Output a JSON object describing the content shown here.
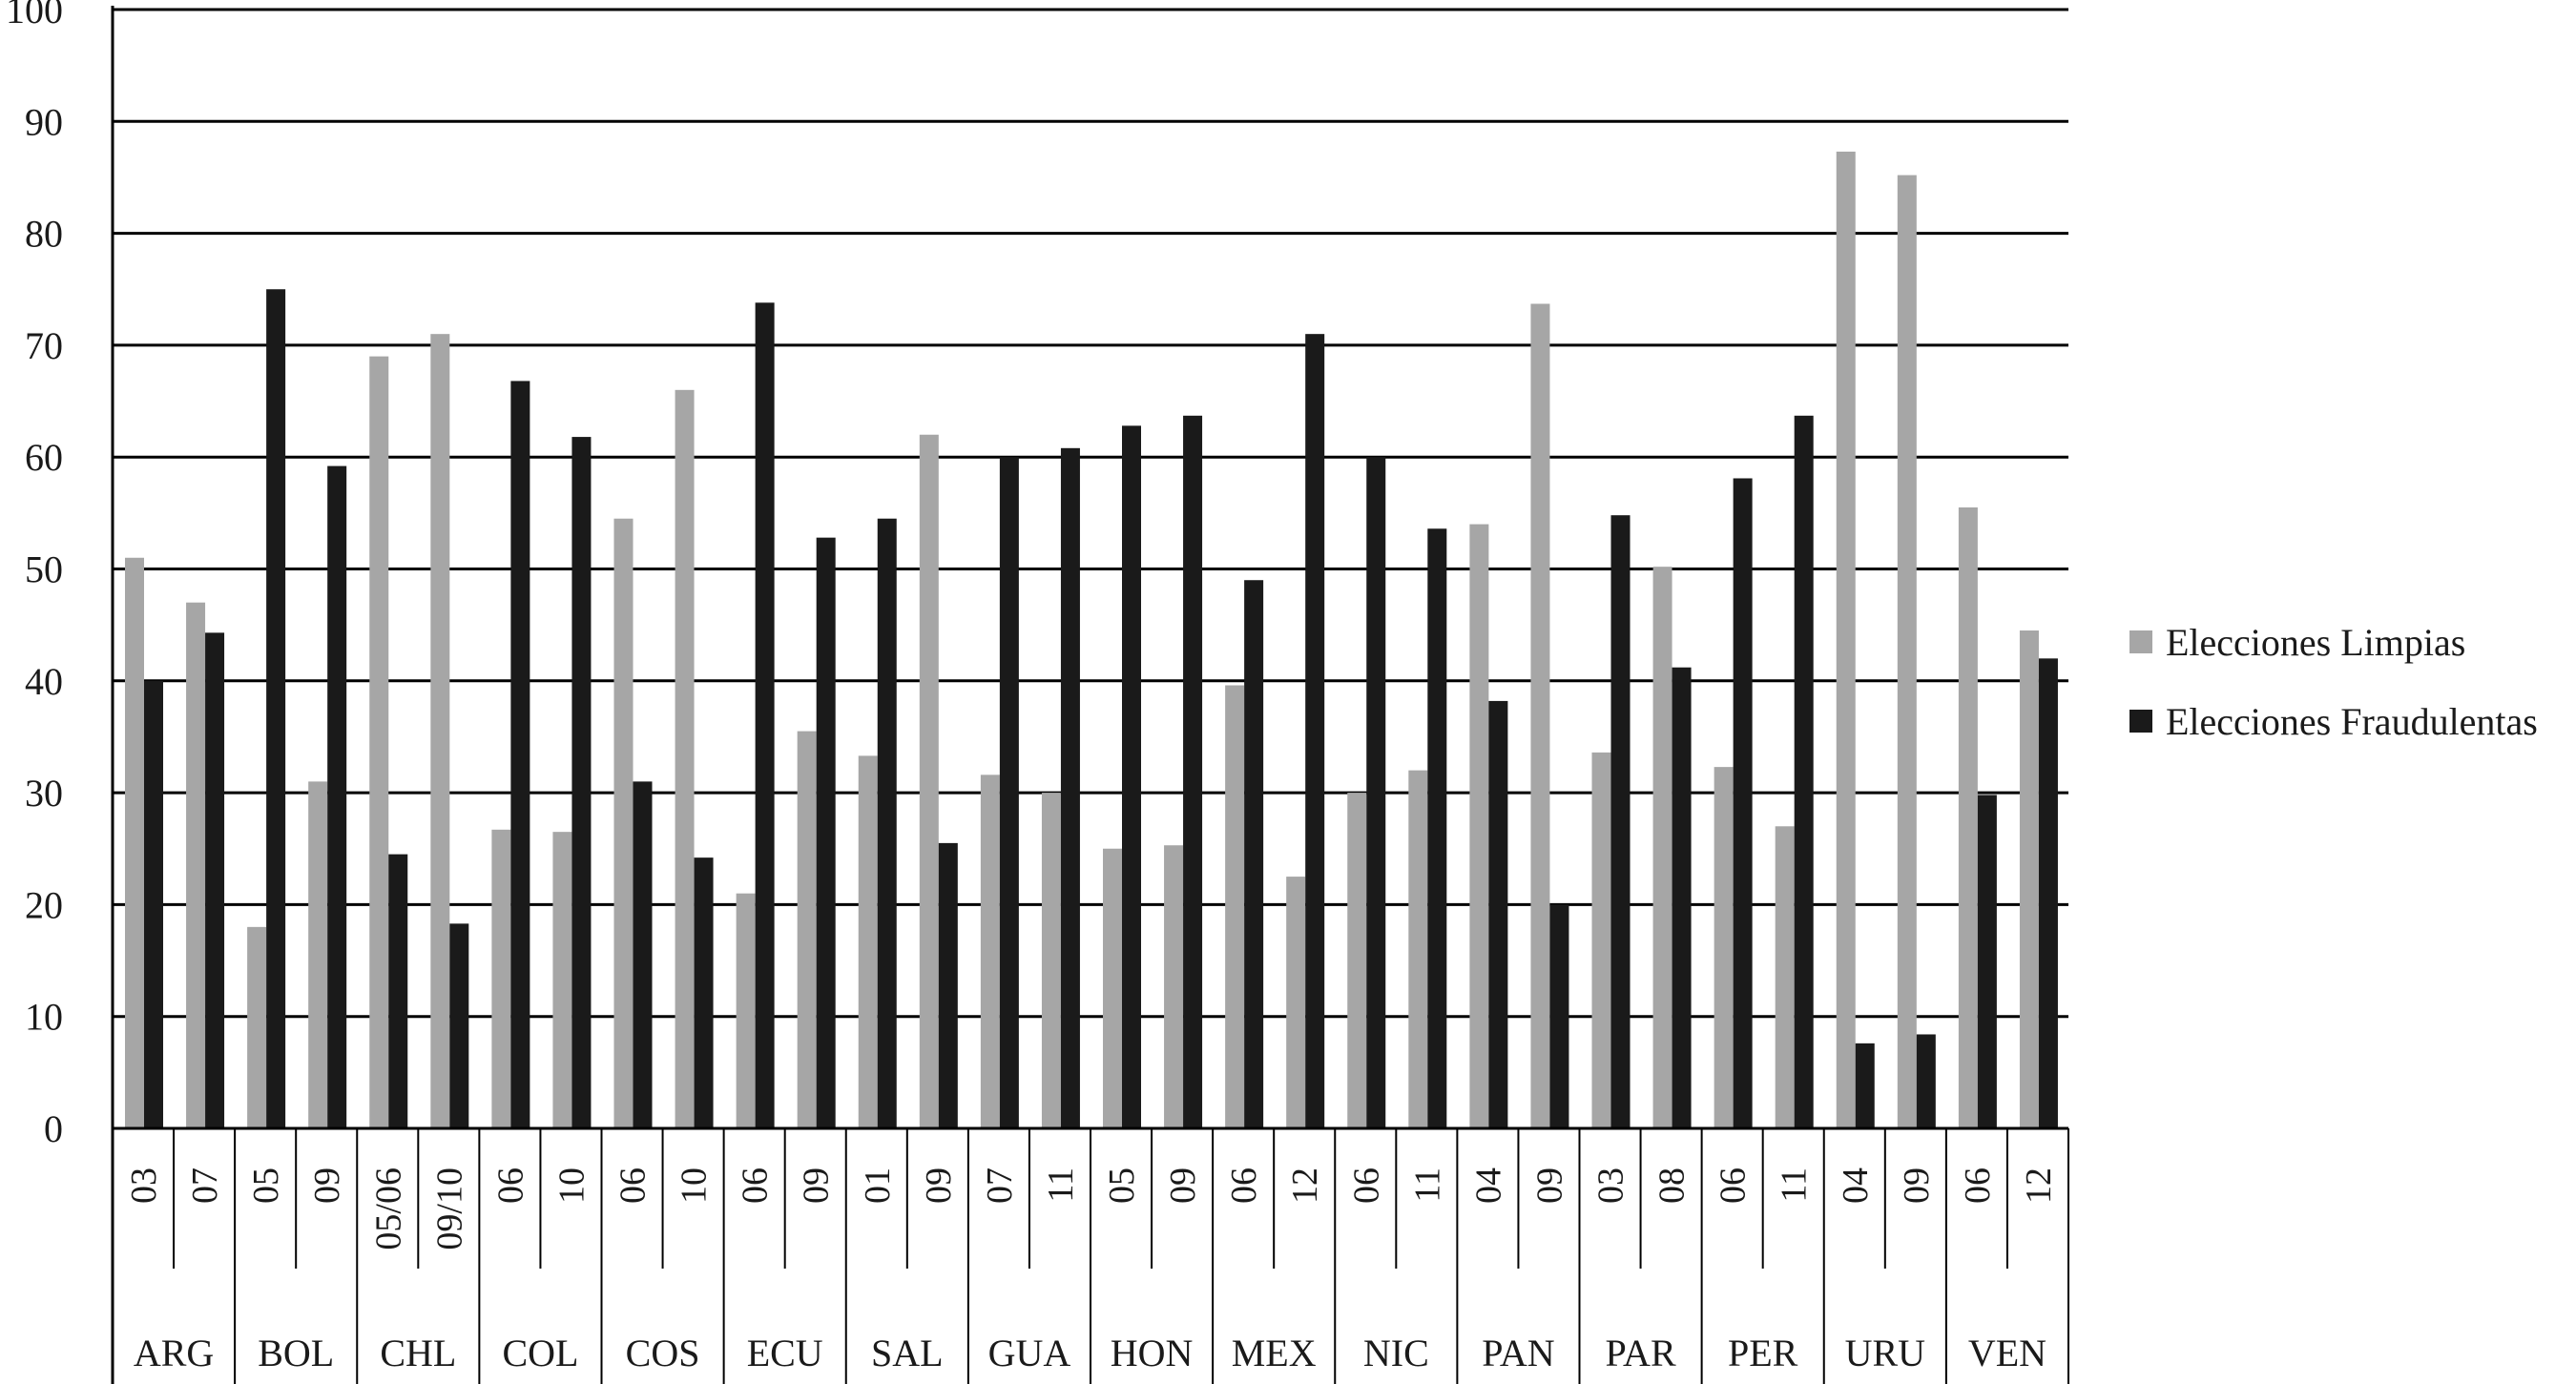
{
  "chart_data": {
    "type": "bar",
    "ylim": [
      0,
      100
    ],
    "yticks": [
      0,
      10,
      20,
      30,
      40,
      50,
      60,
      70,
      80,
      90,
      100
    ],
    "grid": true,
    "legend_position": "right",
    "groups": [
      {
        "country": "ARG",
        "years": [
          "03",
          "07"
        ]
      },
      {
        "country": "BOL",
        "years": [
          "05",
          "09"
        ]
      },
      {
        "country": "CHL",
        "years": [
          "05/06",
          "09/10"
        ]
      },
      {
        "country": "COL",
        "years": [
          "06",
          "10"
        ]
      },
      {
        "country": "COS",
        "years": [
          "06",
          "10"
        ]
      },
      {
        "country": "ECU",
        "years": [
          "06",
          "09"
        ]
      },
      {
        "country": "SAL",
        "years": [
          "01",
          "09"
        ]
      },
      {
        "country": "GUA",
        "years": [
          "07",
          "11"
        ]
      },
      {
        "country": "HON",
        "years": [
          "05",
          "09"
        ]
      },
      {
        "country": "MEX",
        "years": [
          "06",
          "12"
        ]
      },
      {
        "country": "NIC",
        "years": [
          "06",
          "11"
        ]
      },
      {
        "country": "PAN",
        "years": [
          "04",
          "09"
        ]
      },
      {
        "country": "PAR",
        "years": [
          "03",
          "08"
        ]
      },
      {
        "country": "PER",
        "years": [
          "06",
          "11"
        ]
      },
      {
        "country": "URU",
        "years": [
          "04",
          "09"
        ]
      },
      {
        "country": "VEN",
        "years": [
          "06",
          "12"
        ]
      }
    ],
    "series": [
      {
        "name": "Elecciones Limpias",
        "color": "#a6a6a6",
        "values": [
          51,
          47,
          18,
          31,
          69,
          71,
          26.7,
          26.5,
          54.5,
          66,
          21,
          35.5,
          33.3,
          62,
          31.6,
          30,
          25,
          25.3,
          39.6,
          22.5,
          30,
          32,
          54,
          73.7,
          33.6,
          50.2,
          32.3,
          27,
          87.3,
          85.2,
          55.5,
          44.5
        ]
      },
      {
        "name": "Elecciones Fraudulentas",
        "color": "#1a1a1a",
        "values": [
          40,
          44.3,
          75,
          59.2,
          24.5,
          18.3,
          66.8,
          61.8,
          31,
          24.2,
          73.8,
          52.8,
          54.5,
          25.5,
          60,
          60.8,
          62.8,
          63.7,
          49,
          71,
          60,
          53.6,
          38.2,
          20,
          54.8,
          41.2,
          58.1,
          63.7,
          7.6,
          8.4,
          29.8,
          42
        ]
      }
    ]
  }
}
